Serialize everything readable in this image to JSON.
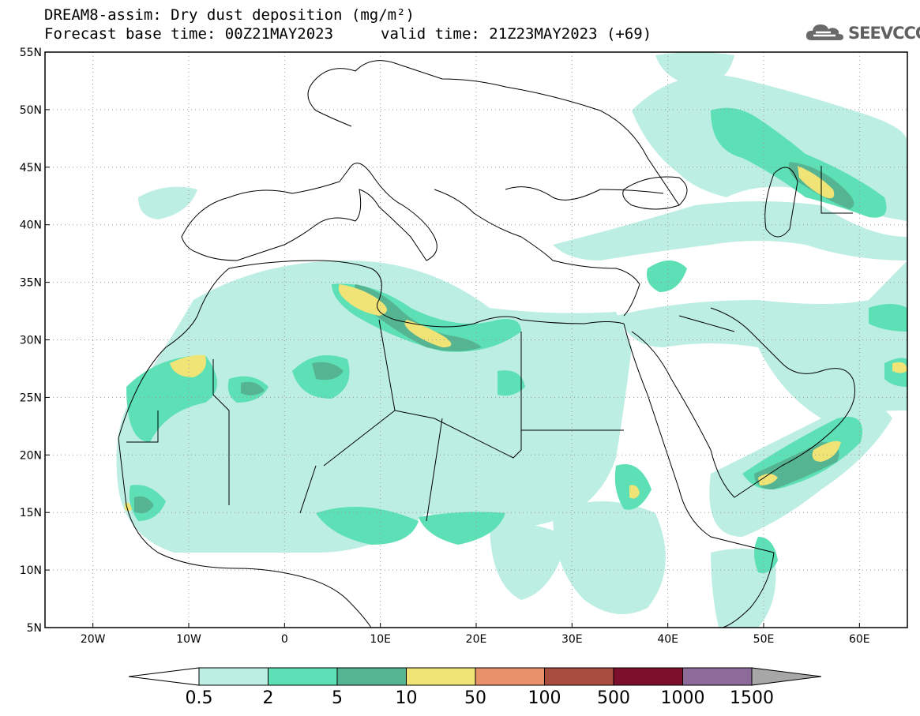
{
  "header": {
    "title_line1": "DREAM8-assim: Dry dust deposition (mg/m²)",
    "title_line2_base": "Forecast base time: 00Z21MAY2023",
    "title_line2_valid": "valid time: 21Z23MAY2023 (+69)"
  },
  "logo": {
    "text": "SEEVCCC",
    "icon": "cloud-icon"
  },
  "map": {
    "extent": {
      "lon_min": -25,
      "lon_max": 65,
      "lat_min": 5,
      "lat_max": 55
    },
    "lat_labels": [
      "55N",
      "50N",
      "45N",
      "40N",
      "35N",
      "30N",
      "25N",
      "20N",
      "15N",
      "10N",
      "5N"
    ],
    "lat_values": [
      55,
      50,
      45,
      40,
      35,
      30,
      25,
      20,
      15,
      10,
      5
    ],
    "lon_labels": [
      "20W",
      "10W",
      "0",
      "10E",
      "20E",
      "30E",
      "40E",
      "50E",
      "60E"
    ],
    "lon_values": [
      -20,
      -10,
      0,
      10,
      20,
      30,
      40,
      50,
      60
    ],
    "grid": "dotted"
  },
  "legend": {
    "labels": [
      "0.5",
      "2",
      "5",
      "10",
      "50",
      "100",
      "500",
      "1000",
      "1500"
    ],
    "colors": [
      "#bdeee3",
      "#5de0b5",
      "#55b592",
      "#efe475",
      "#e8916a",
      "#a94d3f",
      "#7c0f2c",
      "#8c6b9a",
      "#a7a7a7"
    ],
    "units": "mg/m²"
  }
}
